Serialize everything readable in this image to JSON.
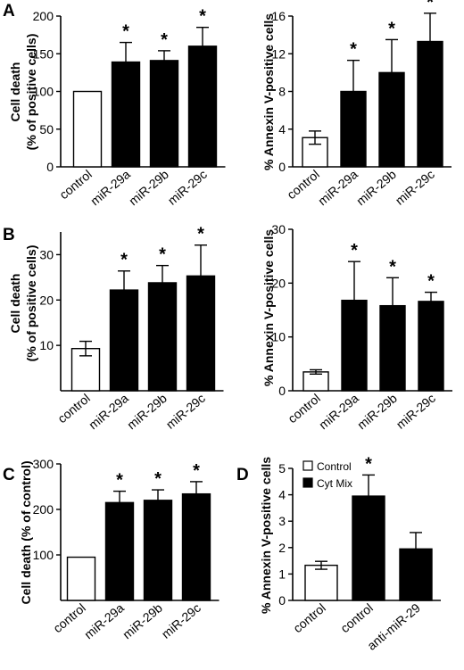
{
  "chart_data": [
    {
      "panel": "A",
      "type": "bar",
      "ylabel": "Cell death (% of positive cells)",
      "ylabel_lines": [
        "Cell death",
        "(% of positive cells)"
      ],
      "ylim": [
        0,
        200
      ],
      "yticks": [
        0,
        50,
        100,
        150,
        200
      ],
      "categories": [
        "control",
        "miR-29a",
        "miR-29b",
        "miR-29c"
      ],
      "values": [
        100,
        139,
        141,
        160
      ],
      "errors": [
        0,
        26,
        13,
        25
      ],
      "fills": [
        "#ffffff",
        "#000000",
        "#000000",
        "#000000"
      ],
      "significant": [
        false,
        true,
        true,
        true
      ]
    },
    {
      "type": "bar",
      "ylabel": "% Annexin V-positive cells",
      "ylim": [
        0,
        16
      ],
      "yticks": [
        0,
        4,
        8,
        12,
        16
      ],
      "categories": [
        "control",
        "miR-29a",
        "miR-29b",
        "miR-29c"
      ],
      "values": [
        3.1,
        8,
        10,
        13.3
      ],
      "errors": [
        0.7,
        3.3,
        3.5,
        3.0
      ],
      "fills": [
        "#ffffff",
        "#000000",
        "#000000",
        "#000000"
      ],
      "significant": [
        false,
        true,
        true,
        true
      ]
    },
    {
      "panel": "B",
      "type": "bar",
      "ylabel": "Cell death (% of positive cells)",
      "ylabel_lines": [
        "Cell death",
        "(% of positive cells)"
      ],
      "ylim": [
        0,
        35
      ],
      "yticks": [
        10,
        20,
        30
      ],
      "categories": [
        "control",
        "miR-29a",
        "miR-29b",
        "miR-29c"
      ],
      "values": [
        9.3,
        22.2,
        23.8,
        25.3
      ],
      "errors": [
        1.6,
        4.2,
        3.8,
        6.8
      ],
      "fills": [
        "#ffffff",
        "#000000",
        "#000000",
        "#000000"
      ],
      "significant": [
        false,
        true,
        true,
        true
      ]
    },
    {
      "type": "bar",
      "ylabel": "% Annexin V-positive cells",
      "ylim": [
        0,
        30
      ],
      "yticks": [
        0,
        10,
        20,
        30
      ],
      "categories": [
        "control",
        "miR-29a",
        "miR-29b",
        "miR-29c"
      ],
      "values": [
        3.5,
        16.8,
        15.8,
        16.6
      ],
      "errors": [
        0.4,
        7.2,
        5.2,
        1.7
      ],
      "fills": [
        "#ffffff",
        "#000000",
        "#000000",
        "#000000"
      ],
      "significant": [
        false,
        true,
        true,
        true
      ]
    },
    {
      "panel": "C",
      "type": "bar",
      "ylabel": "Cell death (% of control)",
      "ylim": [
        0,
        300
      ],
      "yticks": [
        100,
        200,
        300
      ],
      "categories": [
        "control",
        "miR-29a",
        "miR-29b",
        "miR-29c"
      ],
      "values": [
        95,
        215,
        220,
        234
      ],
      "errors": [
        0,
        25,
        23,
        27
      ],
      "fills": [
        "#ffffff",
        "#000000",
        "#000000",
        "#000000"
      ],
      "significant": [
        false,
        true,
        true,
        true
      ]
    },
    {
      "panel": "D",
      "type": "bar",
      "ylabel": "% Annexin V-positive cells",
      "ylim": [
        0,
        5
      ],
      "yticks": [
        0,
        1,
        2,
        3,
        4,
        5
      ],
      "categories": [
        "control",
        "control",
        "anti-miR-29"
      ],
      "values": [
        1.33,
        3.95,
        1.95
      ],
      "errors": [
        0.15,
        0.8,
        0.62
      ],
      "fills": [
        "#ffffff",
        "#000000",
        "#000000"
      ],
      "significant": [
        false,
        true,
        false
      ],
      "legend": [
        {
          "label": "Control",
          "color": "#ffffff"
        },
        {
          "label": "Cyt Mix",
          "color": "#000000"
        }
      ],
      "legend_position": "top-left"
    }
  ],
  "significance_marker": "*"
}
